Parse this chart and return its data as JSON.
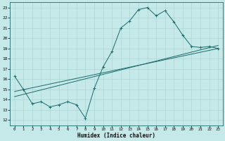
{
  "xlabel": "Humidex (Indice chaleur)",
  "xlim": [
    -0.5,
    23.5
  ],
  "ylim": [
    11.5,
    23.5
  ],
  "yticks": [
    12,
    13,
    14,
    15,
    16,
    17,
    18,
    19,
    20,
    21,
    22,
    23
  ],
  "xticks": [
    0,
    1,
    2,
    3,
    4,
    5,
    6,
    7,
    8,
    9,
    10,
    11,
    12,
    13,
    14,
    15,
    16,
    17,
    18,
    19,
    20,
    21,
    22,
    23
  ],
  "bg_color": "#c5e8e8",
  "line_color": "#1a6b6b",
  "grid_color": "#afd4d4",
  "line1_x": [
    0,
    1,
    2,
    3,
    4,
    5,
    6,
    7,
    8,
    9,
    10,
    11,
    12,
    13,
    14,
    15,
    16,
    17,
    18,
    19,
    20,
    21,
    22,
    23
  ],
  "line1_y": [
    16.3,
    15.0,
    13.6,
    13.8,
    13.3,
    13.5,
    13.8,
    13.5,
    12.2,
    15.1,
    17.2,
    18.7,
    21.0,
    21.7,
    22.8,
    23.0,
    22.2,
    22.7,
    21.6,
    20.3,
    19.2,
    19.1,
    19.2,
    19.0
  ],
  "line2_x": [
    0,
    23
  ],
  "line2_y": [
    14.3,
    19.3
  ],
  "line3_x": [
    0,
    23
  ],
  "line3_y": [
    14.8,
    19.0
  ]
}
